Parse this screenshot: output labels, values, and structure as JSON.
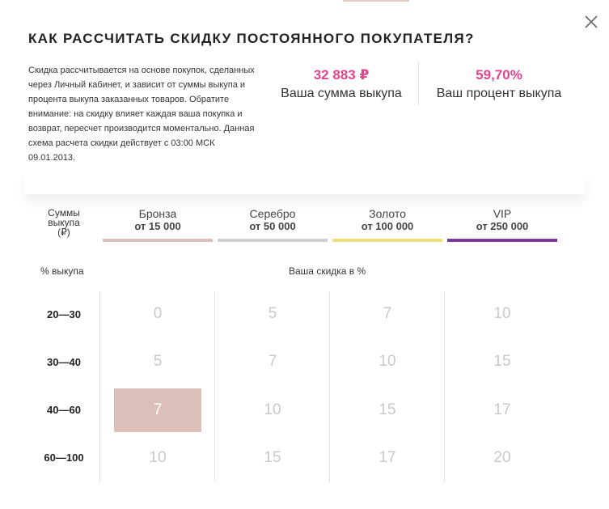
{
  "title": "КАК РАССЧИТАТЬ СКИДКУ ПОСТОЯННОГО ПОКУПАТЕЛЯ?",
  "description": "Скидка рассчитывается на основе покупок, сделанных через Личный кабинет, и зависит от суммы выкупа и процента выкупа заказанных товаров. Обратите внимание: на скидку влияет каждая ваша покупка и возврат, пересчет производится моментально. Данная схема расчета скидки действует с 03:00 МСК 09.01.2013.",
  "stats": {
    "sum_value": "32 883 ₽",
    "sum_label": "Ваша сумма выкупа",
    "percent_value": "59,70%",
    "percent_label": "Ваш процент выкупа"
  },
  "table": {
    "sums_label_line1": "Суммы",
    "sums_label_line2": "выкупа",
    "sums_label_line3": "(₽)",
    "percent_header": "% выкупа",
    "discount_header": "Ваша скидка в %",
    "tiers": [
      {
        "name": "Бронза",
        "min": "от 15 000",
        "color": "#dcbfb9"
      },
      {
        "name": "Серебро",
        "min": "от 50 000",
        "color": "#cfcfcf"
      },
      {
        "name": "Золото",
        "min": "от 100 000",
        "color": "#efe07a"
      },
      {
        "name": "VIP",
        "min": "от 250 000",
        "color": "#7b3aa0"
      }
    ],
    "rows": [
      {
        "label": "20—30",
        "values": [
          "0",
          "5",
          "7",
          "10"
        ]
      },
      {
        "label": "30—40",
        "values": [
          "5",
          "7",
          "10",
          "15"
        ]
      },
      {
        "label": "40—60",
        "values": [
          "7",
          "10",
          "15",
          "17"
        ]
      },
      {
        "label": "60—100",
        "values": [
          "10",
          "15",
          "17",
          "20"
        ]
      }
    ],
    "active_cell": {
      "row": 2,
      "col": 0
    }
  },
  "icons": {
    "close": "close-icon"
  },
  "colors": {
    "accent": "#e0468f",
    "active_cell": "#dcbfb9"
  }
}
